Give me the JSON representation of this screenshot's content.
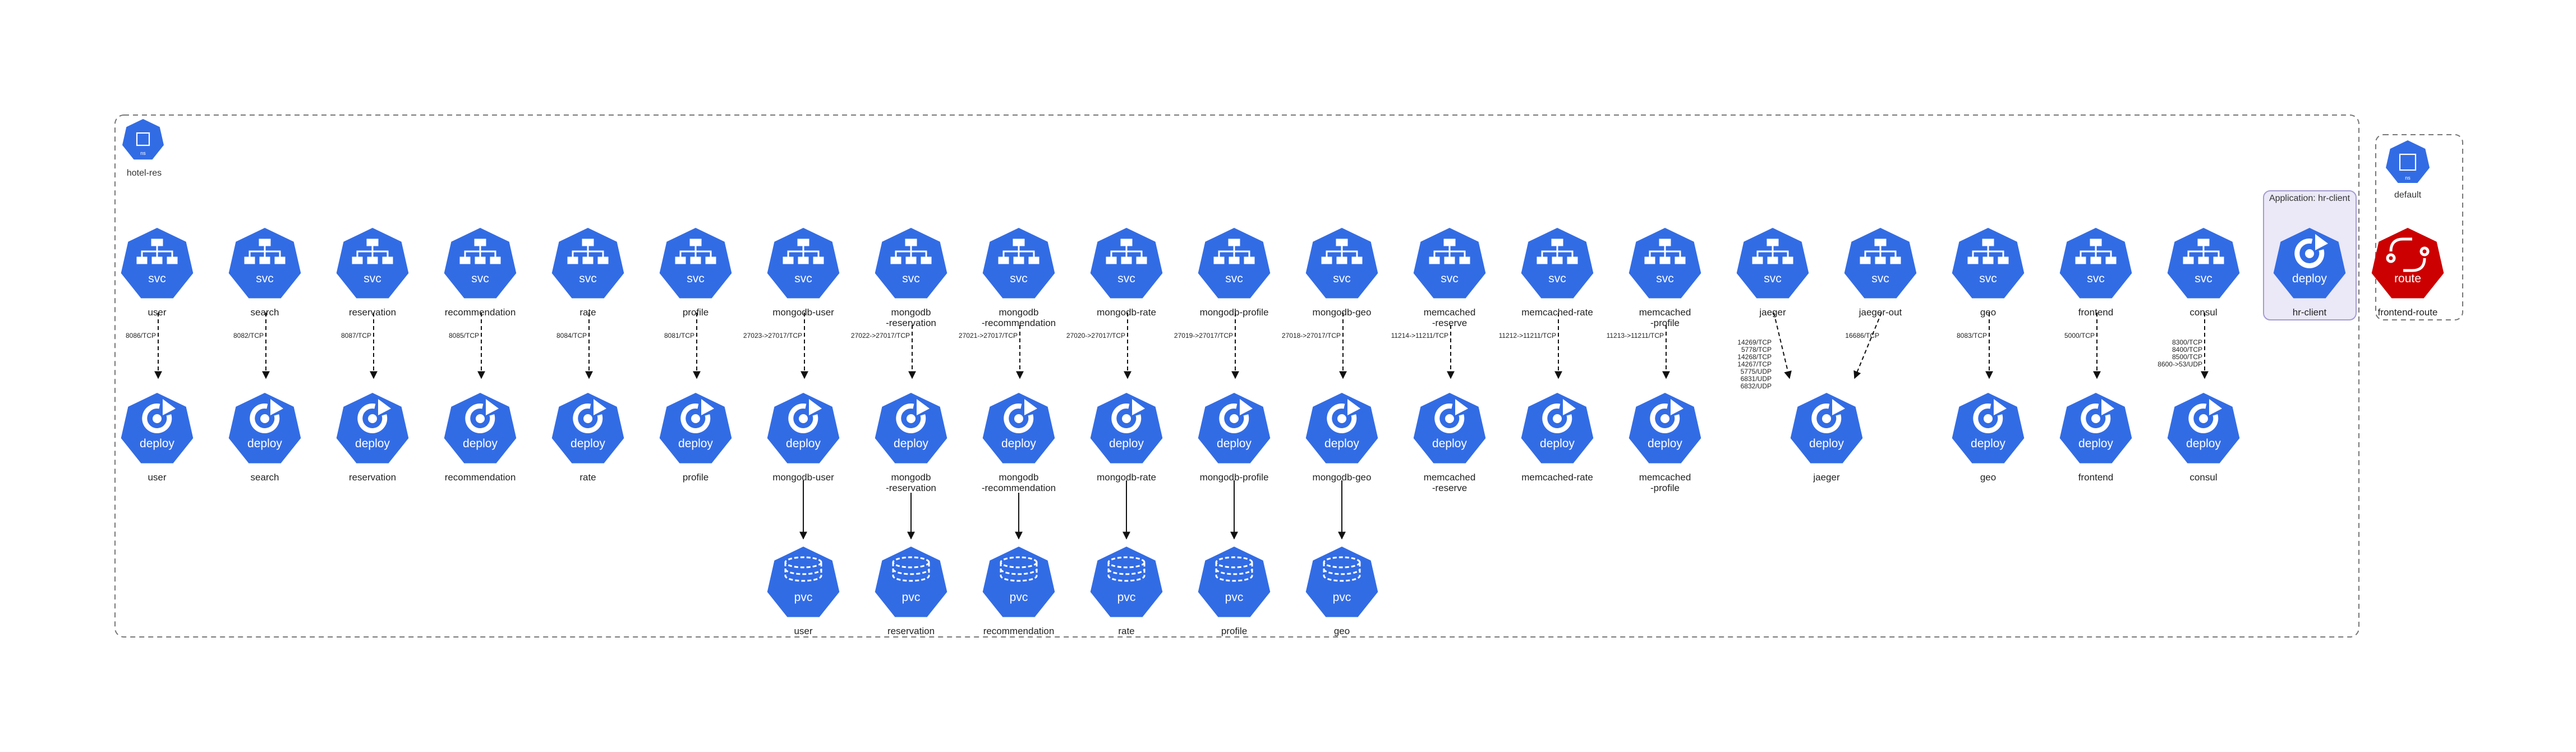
{
  "namespaces": {
    "hotel_res": {
      "label": "hotel-res",
      "badge": "ns"
    },
    "default": {
      "label": "default",
      "badge": "ns"
    }
  },
  "application_group": {
    "label": "Application: hr-client"
  },
  "colors": {
    "k8s_blue": "#326ce5",
    "route_red": "#cc0000",
    "edge": "#111111",
    "group_fill": "#ebe8f7",
    "group_border": "#a49bd2"
  },
  "icons": {
    "svc": "service-tree-icon",
    "deploy": "deploy-cycle-icon",
    "pvc": "pvc-cylinder-icon",
    "ns": "namespace-square-icon",
    "route": "route-arrows-icon"
  },
  "services": [
    {
      "id": "user",
      "label": "user",
      "svc_kind": "svc",
      "port": [
        "8086/TCP"
      ],
      "deploy_label": "user",
      "deploy_kind": "deploy"
    },
    {
      "id": "search",
      "label": "search",
      "svc_kind": "svc",
      "port": [
        "8082/TCP"
      ],
      "deploy_label": "search",
      "deploy_kind": "deploy"
    },
    {
      "id": "reservation",
      "label": "reservation",
      "svc_kind": "svc",
      "port": [
        "8087/TCP"
      ],
      "deploy_label": "reservation",
      "deploy_kind": "deploy"
    },
    {
      "id": "recommendation",
      "label": "recommendation",
      "svc_kind": "svc",
      "port": [
        "8085/TCP"
      ],
      "deploy_label": "recommendation",
      "deploy_kind": "deploy"
    },
    {
      "id": "rate",
      "label": "rate",
      "svc_kind": "svc",
      "port": [
        "8084/TCP"
      ],
      "deploy_label": "rate",
      "deploy_kind": "deploy"
    },
    {
      "id": "profile",
      "label": "profile",
      "svc_kind": "svc",
      "port": [
        "8081/TCP"
      ],
      "deploy_label": "profile",
      "deploy_kind": "deploy"
    },
    {
      "id": "mongodb-user",
      "label": "mongodb-user",
      "svc_kind": "svc",
      "port": [
        "27023->27017/TCP"
      ],
      "deploy_label": "mongodb-user",
      "deploy_kind": "deploy",
      "pvc_label": "user",
      "pvc_kind": "pvc"
    },
    {
      "id": "mongodb-reservation",
      "label": "mongodb\n-reservation",
      "svc_kind": "svc",
      "port": [
        "27022->27017/TCP"
      ],
      "deploy_label": "mongodb\n-reservation",
      "deploy_kind": "deploy",
      "pvc_label": "reservation",
      "pvc_kind": "pvc"
    },
    {
      "id": "mongodb-recommendation",
      "label": "mongodb\n-recommendation",
      "svc_kind": "svc",
      "port": [
        "27021->27017/TCP"
      ],
      "deploy_label": "mongodb\n-recommendation",
      "deploy_kind": "deploy",
      "pvc_label": "recommendation",
      "pvc_kind": "pvc"
    },
    {
      "id": "mongodb-rate",
      "label": "mongodb-rate",
      "svc_kind": "svc",
      "port": [
        "27020->27017/TCP"
      ],
      "deploy_label": "mongodb-rate",
      "deploy_kind": "deploy",
      "pvc_label": "rate",
      "pvc_kind": "pvc"
    },
    {
      "id": "mongodb-profile",
      "label": "mongodb-profile",
      "svc_kind": "svc",
      "port": [
        "27019->27017/TCP"
      ],
      "deploy_label": "mongodb-profile",
      "deploy_kind": "deploy",
      "pvc_label": "profile",
      "pvc_kind": "pvc"
    },
    {
      "id": "mongodb-geo",
      "label": "mongodb-geo",
      "svc_kind": "svc",
      "port": [
        "27018->27017/TCP"
      ],
      "deploy_label": "mongodb-geo",
      "deploy_kind": "deploy",
      "pvc_label": "geo",
      "pvc_kind": "pvc"
    },
    {
      "id": "memcached-reserve",
      "label": "memcached\n-reserve",
      "svc_kind": "svc",
      "port": [
        "11214->11211/TCP"
      ],
      "deploy_label": "memcached\n-reserve",
      "deploy_kind": "deploy"
    },
    {
      "id": "memcached-rate",
      "label": "memcached-rate",
      "svc_kind": "svc",
      "port": [
        "11212->11211/TCP"
      ],
      "deploy_label": "memcached-rate",
      "deploy_kind": "deploy"
    },
    {
      "id": "memcached-profile",
      "label": "memcached\n-profile",
      "svc_kind": "svc",
      "port": [
        "11213->11211/TCP"
      ],
      "deploy_label": "memcached\n-profile",
      "deploy_kind": "deploy"
    },
    {
      "id": "jaeger",
      "label": "jaeger",
      "svc_kind": "svc",
      "port": [
        "14269/TCP",
        "5778/TCP",
        "14268/TCP",
        "14267/TCP",
        "5775/UDP",
        "6831/UDP",
        "6832/UDP"
      ],
      "deploy_label": "jaeger",
      "deploy_kind": "deploy"
    },
    {
      "id": "jaeger-out",
      "label": "jaeger-out",
      "svc_kind": "svc",
      "port": [
        "16686/TCP"
      ]
    },
    {
      "id": "geo",
      "label": "geo",
      "svc_kind": "svc",
      "port": [
        "8083/TCP"
      ],
      "deploy_label": "geo",
      "deploy_kind": "deploy"
    },
    {
      "id": "frontend",
      "label": "frontend",
      "svc_kind": "svc",
      "port": [
        "5000/TCP"
      ],
      "deploy_label": "frontend",
      "deploy_kind": "deploy"
    },
    {
      "id": "consul",
      "label": "consul",
      "svc_kind": "svc",
      "port": [
        "8300/TCP",
        "8400/TCP",
        "8500/TCP",
        "8600->53/UDP"
      ],
      "deploy_label": "consul",
      "deploy_kind": "deploy"
    }
  ],
  "hr_client": {
    "label": "hr-client",
    "kind": "deploy"
  },
  "frontend_route": {
    "label": "frontend-route",
    "kind": "route"
  }
}
